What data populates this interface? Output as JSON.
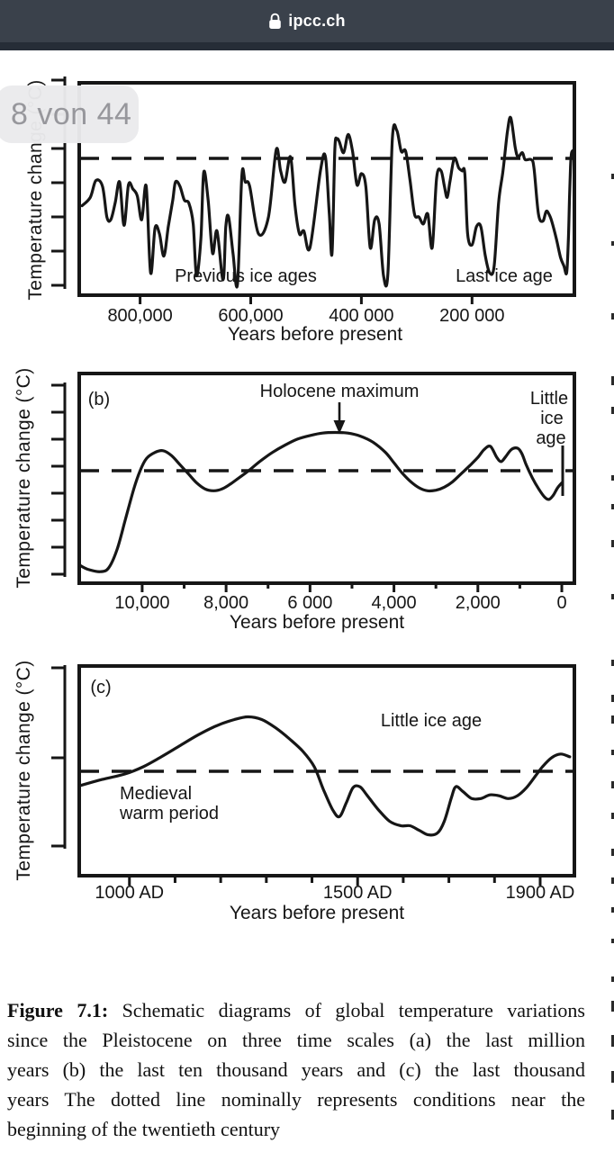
{
  "browser": {
    "host": "ipcc.ch"
  },
  "badge": {
    "page_indicator": "8 von 44"
  },
  "chart_data": [
    {
      "id": "a",
      "type": "line",
      "panel_label": "",
      "x_label": "Years before present",
      "y_label": "Temperature change (°C)",
      "x_range": [
        910000,
        15000
      ],
      "y_range_c": [
        -4.9,
        2.7
      ],
      "dashed_line": {
        "value": 0,
        "note": "conditions near beginning of twentieth century"
      },
      "x_ticks": [
        {
          "value": 800000,
          "label": "800,000"
        },
        {
          "value": 600000,
          "label": "600,000"
        },
        {
          "value": 400000,
          "label": "400 000"
        },
        {
          "value": 200000,
          "label": "200 000"
        }
      ],
      "annotations": [
        {
          "text": "Previous ice ages"
        },
        {
          "text": "Last ice age"
        }
      ],
      "series": [
        {
          "name": "Global temperature (last million years, schematic)",
          "points": [
            [
              905,
              -1.7
            ],
            [
              890,
              -1.4
            ],
            [
              880,
              -0.8
            ],
            [
              868,
              -1.0
            ],
            [
              860,
              -2.1
            ],
            [
              853,
              -2.2
            ],
            [
              845,
              -1.6
            ],
            [
              837,
              -0.85
            ],
            [
              829,
              -2.4
            ],
            [
              821,
              -0.95
            ],
            [
              813,
              -1.1
            ],
            [
              805,
              -1.35
            ],
            [
              797,
              -2.2
            ],
            [
              789,
              -1.0
            ],
            [
              781,
              -4.1
            ],
            [
              773,
              -2.5
            ],
            [
              765,
              -2.7
            ],
            [
              757,
              -3.5
            ],
            [
              749,
              -2.45
            ],
            [
              741,
              -1.5
            ],
            [
              736,
              -0.85
            ],
            [
              728,
              -1.0
            ],
            [
              720,
              -1.5
            ],
            [
              712,
              -1.6
            ],
            [
              704,
              -2.35
            ],
            [
              698,
              -4.2
            ],
            [
              690,
              -2.85
            ],
            [
              685,
              -0.5
            ],
            [
              677,
              -1.5
            ],
            [
              669,
              -3.4
            ],
            [
              661,
              -2.6
            ],
            [
              650,
              -4.35
            ],
            [
              645,
              -2.45
            ],
            [
              640,
              -2.1
            ],
            [
              632,
              -3.4
            ],
            [
              624,
              -4.5
            ],
            [
              616,
              -0.6
            ],
            [
              610,
              -0.85
            ],
            [
              602,
              -1.0
            ],
            [
              586,
              -2.7
            ],
            [
              568,
              -2.1
            ],
            [
              554,
              0.3
            ],
            [
              546,
              -0.45
            ],
            [
              538,
              -0.85
            ],
            [
              528,
              0.05
            ],
            [
              520,
              -1.7
            ],
            [
              512,
              -2.7
            ],
            [
              504,
              -2.6
            ],
            [
              493,
              -3.2
            ],
            [
              474,
              -0.45
            ],
            [
              465,
              0.05
            ],
            [
              458,
              -2.0
            ],
            [
              453,
              -3.4
            ],
            [
              448,
              0.3
            ],
            [
              444,
              0.68
            ],
            [
              440,
              0.6
            ],
            [
              432,
              0.2
            ],
            [
              424,
              0.85
            ],
            [
              416,
              0.25
            ],
            [
              408,
              -0.95
            ],
            [
              400,
              -0.55
            ],
            [
              392,
              -1.0
            ],
            [
              384,
              -3.2
            ],
            [
              376,
              -2.2
            ],
            [
              368,
              -2.35
            ],
            [
              360,
              -4.2
            ],
            [
              352,
              -4.1
            ],
            [
              344,
              0.7
            ],
            [
              336,
              1.0
            ],
            [
              328,
              0.25
            ],
            [
              320,
              0.25
            ],
            [
              312,
              -0.8
            ],
            [
              304,
              -2.0
            ],
            [
              296,
              -2.1
            ],
            [
              288,
              -2.35
            ],
            [
              280,
              -2.0
            ],
            [
              272,
              -3.2
            ],
            [
              264,
              -0.7
            ],
            [
              256,
              -0.45
            ],
            [
              250,
              -1.0
            ],
            [
              245,
              -1.4
            ],
            [
              240,
              -0.85
            ],
            [
              232,
              0.0
            ],
            [
              224,
              -0.35
            ],
            [
              218,
              -0.45
            ],
            [
              213,
              -0.55
            ],
            [
              208,
              -2.7
            ],
            [
              200,
              -3.1
            ],
            [
              192,
              -2.45
            ],
            [
              184,
              -2.45
            ],
            [
              176,
              -3.5
            ],
            [
              168,
              -4.1
            ],
            [
              160,
              -3.85
            ],
            [
              152,
              -1.6
            ],
            [
              144,
              -0.45
            ],
            [
              136,
              0.95
            ],
            [
              130,
              1.45
            ],
            [
              122,
              0.4
            ],
            [
              117,
              0.05
            ],
            [
              109,
              0.2
            ],
            [
              104,
              -0.05
            ],
            [
              93,
              -0.05
            ],
            [
              88,
              -0.35
            ],
            [
              80,
              -2.0
            ],
            [
              72,
              -2.25
            ],
            [
              66,
              -1.9
            ],
            [
              61,
              -2.0
            ],
            [
              56,
              -2.25
            ],
            [
              48,
              -2.85
            ],
            [
              40,
              -3.55
            ],
            [
              34,
              -3.85
            ],
            [
              29,
              -4.1
            ],
            [
              26,
              -3.0
            ],
            [
              24,
              -1.5
            ],
            [
              22,
              -0.3
            ],
            [
              20,
              0.2
            ],
            [
              15,
              0.3
            ]
          ],
          "x_unit": "thousand years BP",
          "y_unit": "relative °C (schematic)"
        }
      ]
    },
    {
      "id": "b",
      "type": "line",
      "panel_label": "(b)",
      "x_label": "Years before present",
      "y_label": "Temperature change (°C)",
      "x_range": [
        11500,
        0
      ],
      "y_range_c": [
        -1.85,
        1.6
      ],
      "dashed_line": {
        "value": 0,
        "note": "conditions near beginning of twentieth century"
      },
      "x_ticks": [
        {
          "value": 10000,
          "label": "10,000"
        },
        {
          "value": 8000,
          "label": "8,000"
        },
        {
          "value": 6000,
          "label": "6 000"
        },
        {
          "value": 4000,
          "label": "4,000"
        },
        {
          "value": 2000,
          "label": "2,000"
        },
        {
          "value": 0,
          "label": "0"
        }
      ],
      "minor_ticks": [
        9000,
        7000,
        5000,
        3000,
        1000
      ],
      "annotations": [
        {
          "text": "Holocene maximum",
          "points_to": "curve maximum near 5,500 BP"
        },
        {
          "text": "Little ice age",
          "lines": [
            "Little",
            "ice",
            "age"
          ],
          "marker_at": "≈300 BP"
        }
      ],
      "series": [
        {
          "name": "Global temperature (last ten thousand years, schematic)",
          "points": [
            [
              11500,
              -1.55
            ],
            [
              11300,
              -1.62
            ],
            [
              11000,
              -1.66
            ],
            [
              10800,
              -1.6
            ],
            [
              10600,
              -1.3
            ],
            [
              10400,
              -0.8
            ],
            [
              10200,
              -0.3
            ],
            [
              10050,
              0.0
            ],
            [
              9900,
              0.2
            ],
            [
              9700,
              0.3
            ],
            [
              9500,
              0.33
            ],
            [
              9300,
              0.25
            ],
            [
              9100,
              0.1
            ],
            [
              8900,
              -0.05
            ],
            [
              8700,
              -0.2
            ],
            [
              8500,
              -0.3
            ],
            [
              8300,
              -0.33
            ],
            [
              8100,
              -0.3
            ],
            [
              7900,
              -0.22
            ],
            [
              7700,
              -0.12
            ],
            [
              7500,
              -0.02
            ],
            [
              7200,
              0.15
            ],
            [
              6900,
              0.3
            ],
            [
              6600,
              0.42
            ],
            [
              6300,
              0.52
            ],
            [
              6000,
              0.58
            ],
            [
              5700,
              0.62
            ],
            [
              5400,
              0.63
            ],
            [
              5100,
              0.62
            ],
            [
              4800,
              0.57
            ],
            [
              4500,
              0.47
            ],
            [
              4200,
              0.3
            ],
            [
              4000,
              0.13
            ],
            [
              3800,
              -0.04
            ],
            [
              3600,
              -0.18
            ],
            [
              3400,
              -0.28
            ],
            [
              3200,
              -0.33
            ],
            [
              3000,
              -0.32
            ],
            [
              2800,
              -0.27
            ],
            [
              2600,
              -0.18
            ],
            [
              2400,
              -0.05
            ],
            [
              2200,
              0.08
            ],
            [
              2000,
              0.22
            ],
            [
              1850,
              0.35
            ],
            [
              1700,
              0.4
            ],
            [
              1550,
              0.22
            ],
            [
              1450,
              0.15
            ],
            [
              1350,
              0.22
            ],
            [
              1200,
              0.35
            ],
            [
              1050,
              0.37
            ],
            [
              950,
              0.28
            ],
            [
              850,
              0.1
            ],
            [
              700,
              -0.12
            ],
            [
              550,
              -0.3
            ],
            [
              400,
              -0.44
            ],
            [
              300,
              -0.47
            ],
            [
              200,
              -0.4
            ],
            [
              100,
              -0.28
            ],
            [
              0,
              -0.2
            ]
          ],
          "x_unit": "years BP",
          "y_unit": "relative °C (schematic)"
        }
      ]
    },
    {
      "id": "c",
      "type": "line",
      "panel_label": "(c)",
      "x_label": "Years before present",
      "y_label": "Temperature change (°C)",
      "x_range_ad": [
        890,
        1975
      ],
      "y_range_c": [
        -1.15,
        1.16
      ],
      "dashed_line": {
        "value": 0,
        "note": "conditions near beginning of twentieth century"
      },
      "x_ticks": [
        {
          "value": 1000,
          "label": "1000 AD"
        },
        {
          "value": 1500,
          "label": "1500 AD"
        },
        {
          "value": 1900,
          "label": "1900 AD"
        }
      ],
      "minor_ticks": [
        1100,
        1200,
        1300,
        1400,
        1600,
        1700,
        1800
      ],
      "annotations": [
        {
          "text": "Little ice age"
        },
        {
          "text": "Medieval warm period",
          "lines": [
            "Medieval",
            "warm period"
          ]
        }
      ],
      "series": [
        {
          "name": "Global temperature (last thousand years, schematic)",
          "points": [
            [
              890,
              -0.16
            ],
            [
              940,
              -0.09
            ],
            [
              990,
              -0.03
            ],
            [
              1030,
              0.05
            ],
            [
              1070,
              0.16
            ],
            [
              1110,
              0.28
            ],
            [
              1150,
              0.4
            ],
            [
              1190,
              0.5
            ],
            [
              1230,
              0.57
            ],
            [
              1260,
              0.6
            ],
            [
              1290,
              0.57
            ],
            [
              1320,
              0.48
            ],
            [
              1350,
              0.36
            ],
            [
              1380,
              0.22
            ],
            [
              1405,
              0.05
            ],
            [
              1425,
              -0.2
            ],
            [
              1445,
              -0.42
            ],
            [
              1460,
              -0.5
            ],
            [
              1475,
              -0.35
            ],
            [
              1490,
              -0.18
            ],
            [
              1505,
              -0.17
            ],
            [
              1520,
              -0.26
            ],
            [
              1545,
              -0.42
            ],
            [
              1570,
              -0.55
            ],
            [
              1595,
              -0.6
            ],
            [
              1615,
              -0.6
            ],
            [
              1635,
              -0.65
            ],
            [
              1655,
              -0.7
            ],
            [
              1675,
              -0.68
            ],
            [
              1690,
              -0.55
            ],
            [
              1705,
              -0.3
            ],
            [
              1715,
              -0.17
            ],
            [
              1730,
              -0.22
            ],
            [
              1750,
              -0.3
            ],
            [
              1770,
              -0.3
            ],
            [
              1790,
              -0.26
            ],
            [
              1810,
              -0.27
            ],
            [
              1830,
              -0.3
            ],
            [
              1850,
              -0.27
            ],
            [
              1870,
              -0.18
            ],
            [
              1890,
              -0.05
            ],
            [
              1905,
              0.05
            ],
            [
              1925,
              0.15
            ],
            [
              1945,
              0.19
            ],
            [
              1965,
              0.16
            ]
          ],
          "x_unit": "year AD",
          "y_unit": "relative °C (schematic)"
        }
      ]
    }
  ],
  "figure_caption": {
    "bold": "Figure 7.1:",
    "lines": [
      "  Schematic diagrams of global temperature variations",
      "since the Pleistocene on three time scales   (a)  the last million",
      "years   (b)  the last ten thousand years  and  (c)  the last thousand",
      "years   The dotted line nominally represents conditions near the",
      "beginning of the twentieth century"
    ]
  }
}
